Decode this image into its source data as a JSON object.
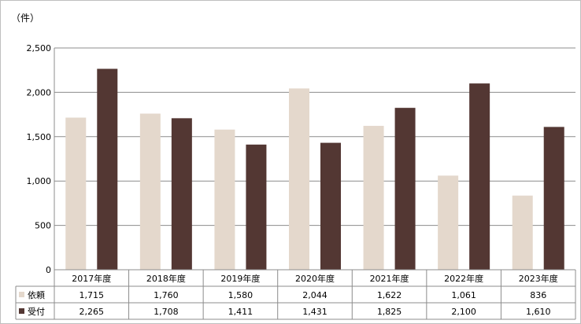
{
  "unit_label": "（件）",
  "colors": {
    "依頼": "#e4d8cc",
    "受付": "#533733",
    "grid": "#8c8c8c",
    "axis": "#000000"
  },
  "chart_data": {
    "type": "bar",
    "title": "",
    "xlabel": "",
    "ylabel": "（件）",
    "categories": [
      "2017年度",
      "2018年度",
      "2019年度",
      "2020年度",
      "2021年度",
      "2022年度",
      "2023年度"
    ],
    "series": [
      {
        "name": "依頼",
        "values": [
          1715,
          1760,
          1580,
          2044,
          1622,
          1061,
          836
        ],
        "labels": [
          "1,715",
          "1,760",
          "1,580",
          "2,044",
          "1,622",
          "1,061",
          "836"
        ]
      },
      {
        "name": "受付",
        "values": [
          2265,
          1708,
          1411,
          1431,
          1825,
          2100,
          1610
        ],
        "labels": [
          "2,265",
          "1,708",
          "1,411",
          "1,431",
          "1,825",
          "2,100",
          "1,610"
        ]
      }
    ],
    "ylim": [
      0,
      2500
    ],
    "yticks": [
      0,
      500,
      1000,
      1500,
      2000,
      2500
    ],
    "ytick_labels": [
      "0",
      "500",
      "1,000",
      "1,500",
      "2,000",
      "2,500"
    ],
    "grid": true,
    "legend": "data-table"
  }
}
